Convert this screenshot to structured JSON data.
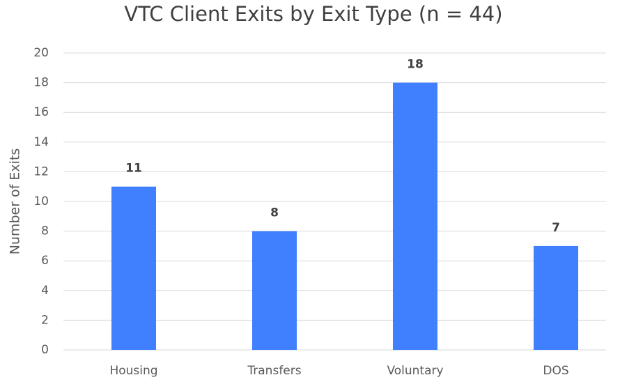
{
  "chart_data": {
    "type": "bar",
    "title": "VTC Client Exits by Exit Type (n = 44)",
    "y_label": "Number of Exits",
    "categories": [
      "Housing",
      "Transfers",
      "Voluntary",
      "DOS"
    ],
    "values": [
      11,
      8,
      18,
      7
    ],
    "color": "#4080ff",
    "ylim": [
      0,
      20
    ],
    "yticks": [
      0,
      2,
      4,
      6,
      8,
      10,
      12,
      14,
      16,
      18,
      20
    ],
    "grid": true
  }
}
